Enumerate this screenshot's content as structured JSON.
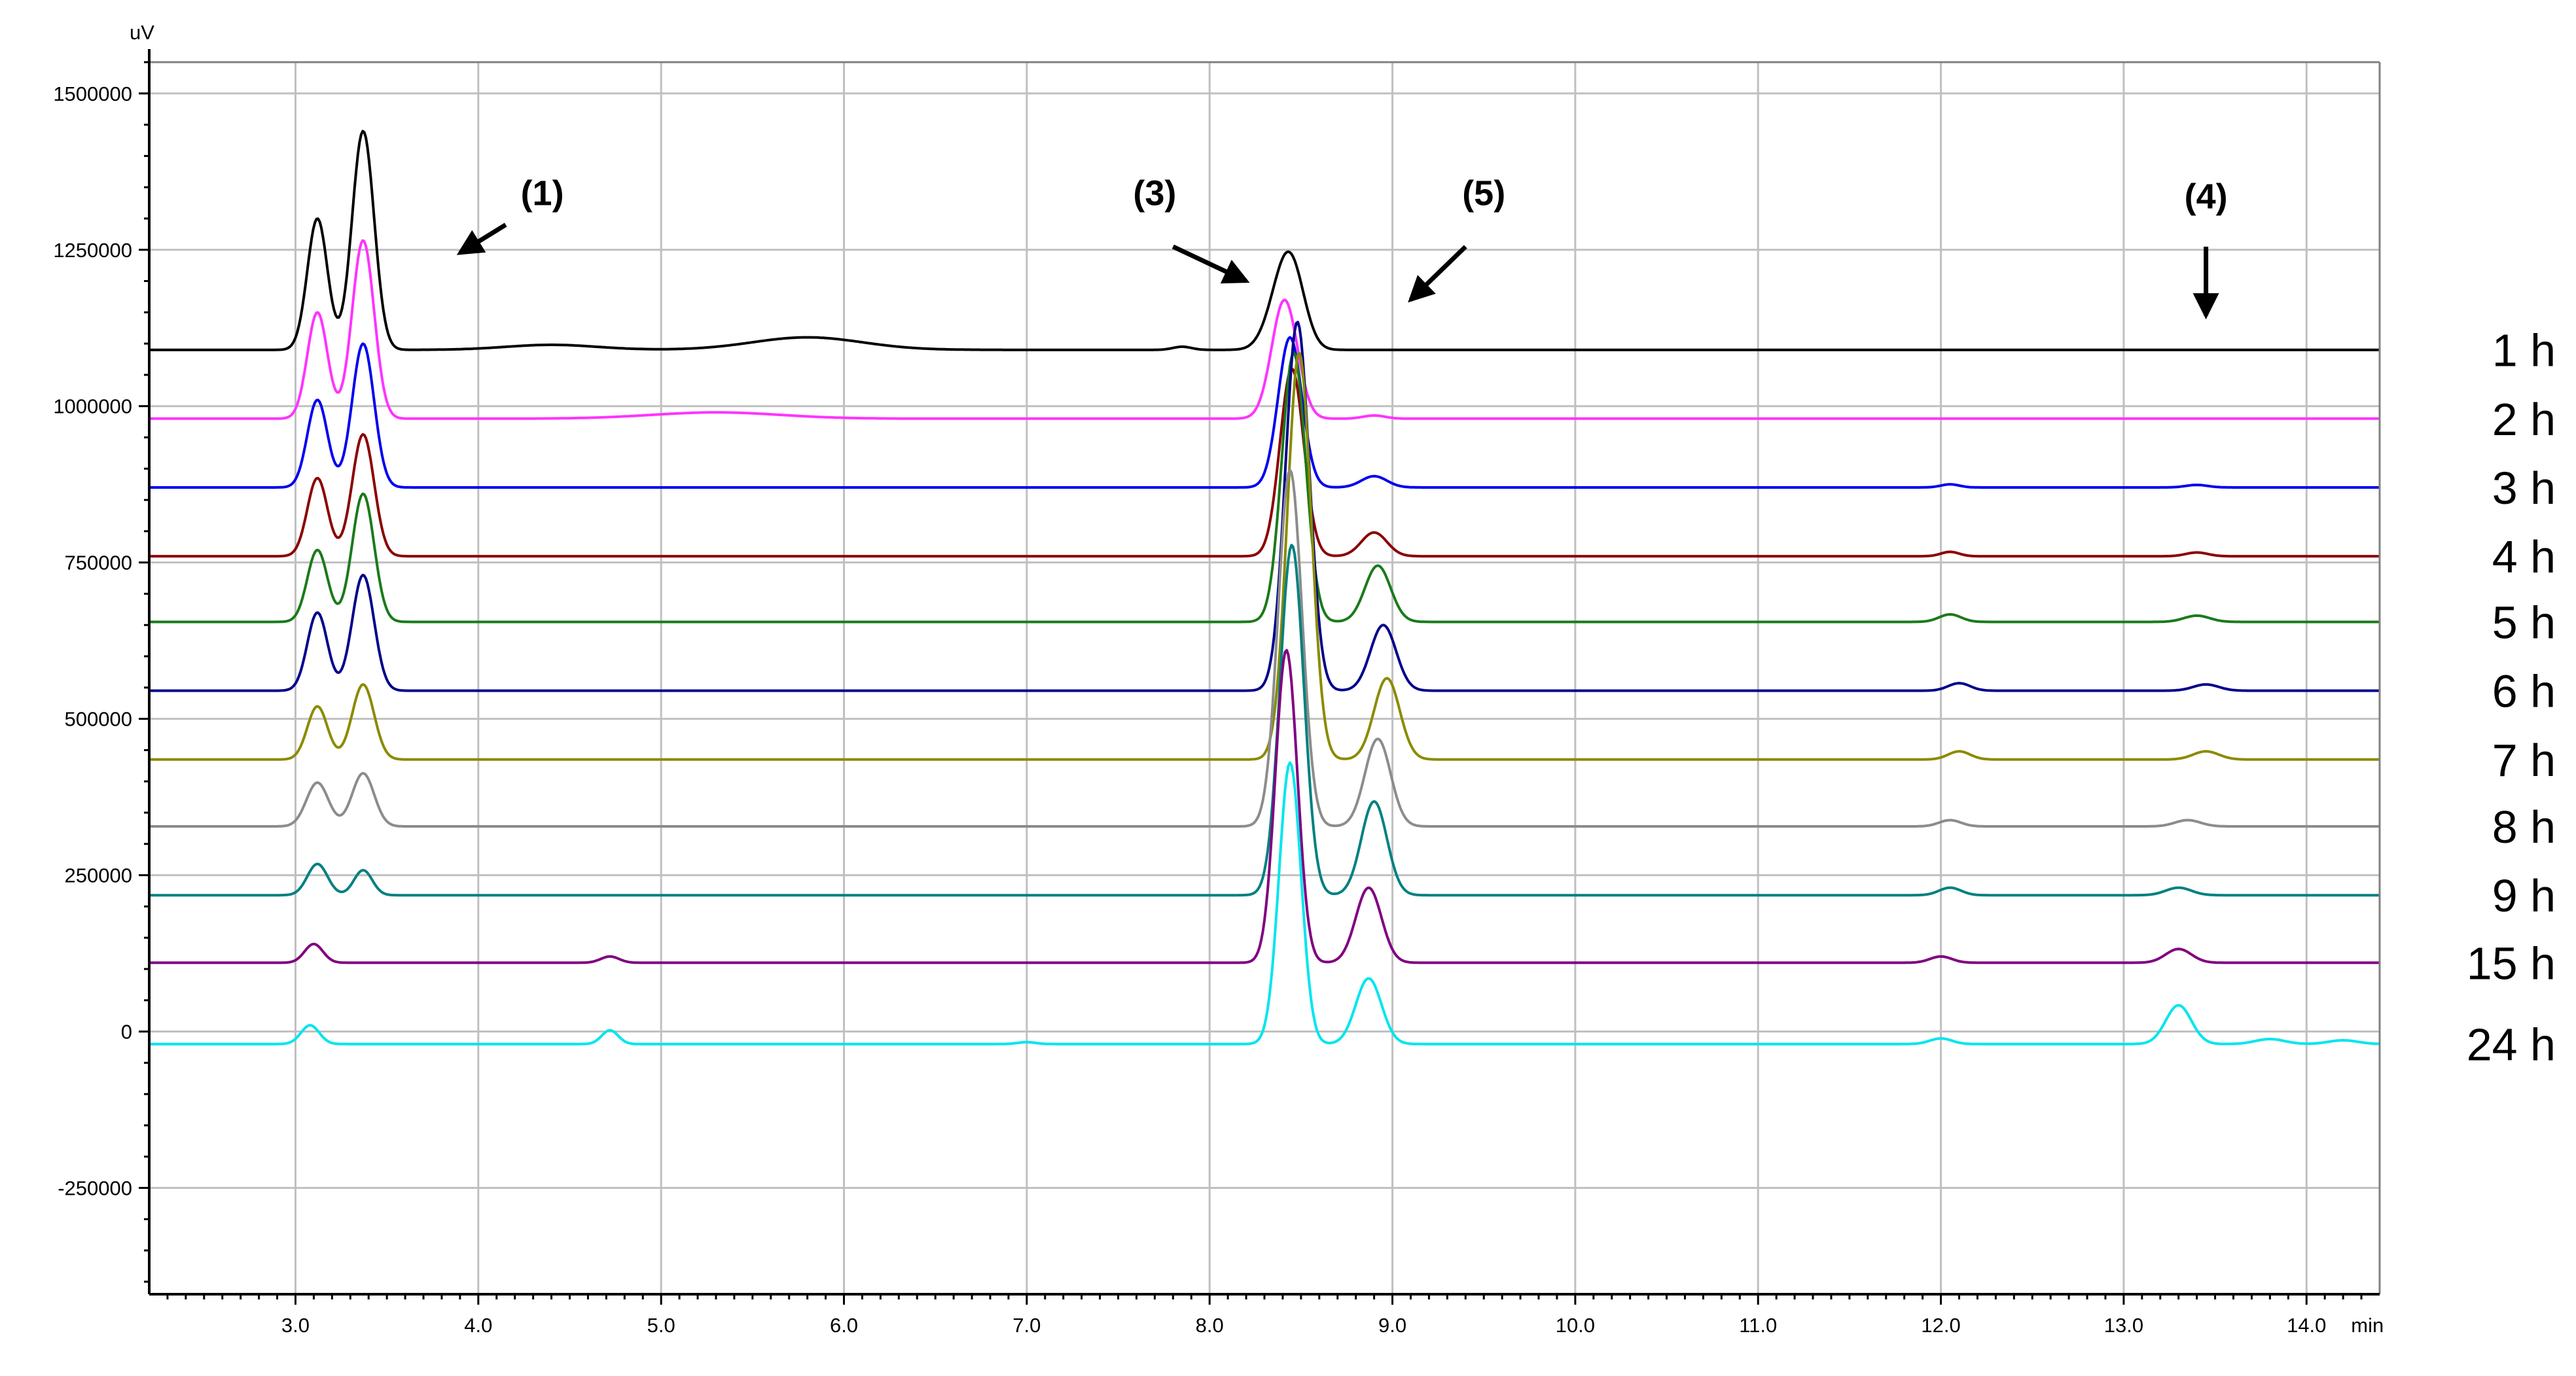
{
  "chart_data": {
    "type": "line",
    "title": "",
    "xlabel": "",
    "ylabel": "",
    "y_unit": "uV",
    "x_unit": "min",
    "xlim": [
      2.2,
      14.4
    ],
    "ylim": [
      -420000,
      1550000
    ],
    "x_ticks": [
      {
        "value": 3.0,
        "label": "3.0"
      },
      {
        "value": 4.0,
        "label": "4.0"
      },
      {
        "value": 5.0,
        "label": "5.0"
      },
      {
        "value": 6.0,
        "label": "6.0"
      },
      {
        "value": 7.0,
        "label": "7.0"
      },
      {
        "value": 8.0,
        "label": "8.0"
      },
      {
        "value": 9.0,
        "label": "9.0"
      },
      {
        "value": 10.0,
        "label": "10.0"
      },
      {
        "value": 11.0,
        "label": "11.0"
      },
      {
        "value": 12.0,
        "label": "12.0"
      },
      {
        "value": 13.0,
        "label": "13.0"
      },
      {
        "value": 14.0,
        "label": "14.0"
      }
    ],
    "y_ticks": [
      {
        "value": 1500000,
        "label": "1500000"
      },
      {
        "value": 1250000,
        "label": "1250000"
      },
      {
        "value": 1000000,
        "label": "1000000"
      },
      {
        "value": 750000,
        "label": "750000"
      },
      {
        "value": 500000,
        "label": "500000"
      },
      {
        "value": 250000,
        "label": "250000"
      },
      {
        "value": 0,
        "label": "0"
      },
      {
        "value": -250000,
        "label": "-250000"
      }
    ],
    "grid": true,
    "legend_position": "right",
    "annotations": [
      {
        "label": "(1)",
        "x": 4.35,
        "y": 1340000,
        "arrow_from": [
          4.15,
          1290000
        ],
        "arrow_to": [
          3.9,
          1245000
        ]
      },
      {
        "label": "(3)",
        "x": 7.7,
        "y": 1340000,
        "arrow_from": [
          7.8,
          1255000
        ],
        "arrow_to": [
          8.2,
          1200000
        ]
      },
      {
        "label": "(5)",
        "x": 9.5,
        "y": 1340000,
        "arrow_from": [
          9.4,
          1255000
        ],
        "arrow_to": [
          9.1,
          1170000
        ]
      },
      {
        "label": "(4)",
        "x": 13.45,
        "y": 1335000,
        "arrow_from": [
          13.45,
          1255000
        ],
        "arrow_to": [
          13.45,
          1145000
        ]
      }
    ],
    "series": [
      {
        "name": "1 h",
        "color": "#000000",
        "baseline": 1090000,
        "offset": 0,
        "peaks": [
          [
            3.12,
            210000,
            0.055
          ],
          [
            3.37,
            350000,
            0.06
          ],
          [
            4.4,
            8000,
            0.25
          ],
          [
            5.8,
            20000,
            0.3
          ],
          [
            7.85,
            5000,
            0.05
          ],
          [
            8.4,
            95000,
            0.08
          ],
          [
            8.46,
            75000,
            0.07
          ]
        ]
      },
      {
        "name": "2 h",
        "color": "#ff33ff",
        "baseline": 980000,
        "offset": 0,
        "peaks": [
          [
            3.12,
            170000,
            0.055
          ],
          [
            3.37,
            285000,
            0.06
          ],
          [
            5.3,
            10000,
            0.35
          ],
          [
            8.41,
            190000,
            0.07
          ],
          [
            8.9,
            5000,
            0.06
          ]
        ]
      },
      {
        "name": "3 h",
        "color": "#0000ee",
        "baseline": 870000,
        "offset": 0,
        "peaks": [
          [
            3.12,
            140000,
            0.055
          ],
          [
            3.37,
            230000,
            0.06
          ],
          [
            8.44,
            240000,
            0.065
          ],
          [
            8.9,
            18000,
            0.07
          ],
          [
            12.05,
            5000,
            0.05
          ],
          [
            13.4,
            4000,
            0.06
          ]
        ]
      },
      {
        "name": "4 h",
        "color": "#8b0000",
        "baseline": 760000,
        "offset": 0,
        "peaks": [
          [
            3.12,
            125000,
            0.055
          ],
          [
            3.37,
            195000,
            0.06
          ],
          [
            8.45,
            300000,
            0.065
          ],
          [
            8.9,
            38000,
            0.07
          ],
          [
            12.05,
            7000,
            0.05
          ],
          [
            13.4,
            6000,
            0.06
          ]
        ]
      },
      {
        "name": "5 h",
        "color": "#1a7a1a",
        "baseline": 655000,
        "offset": 0,
        "peaks": [
          [
            3.12,
            115000,
            0.055
          ],
          [
            3.37,
            205000,
            0.06
          ],
          [
            8.46,
            430000,
            0.065
          ],
          [
            8.92,
            90000,
            0.07
          ],
          [
            12.05,
            12000,
            0.06
          ],
          [
            13.4,
            10000,
            0.07
          ]
        ]
      },
      {
        "name": "6 h",
        "color": "#00008b",
        "baseline": 545000,
        "offset": 0,
        "peaks": [
          [
            3.12,
            125000,
            0.055
          ],
          [
            3.37,
            185000,
            0.06
          ],
          [
            8.48,
            590000,
            0.065
          ],
          [
            8.95,
            105000,
            0.07
          ],
          [
            12.1,
            12000,
            0.06
          ],
          [
            13.45,
            10000,
            0.07
          ]
        ]
      },
      {
        "name": "7 h",
        "color": "#8b8b00",
        "baseline": 435000,
        "offset": 0,
        "peaks": [
          [
            3.12,
            85000,
            0.055
          ],
          [
            3.37,
            120000,
            0.06
          ],
          [
            8.49,
            650000,
            0.065
          ],
          [
            8.97,
            130000,
            0.07
          ],
          [
            12.1,
            13000,
            0.06
          ],
          [
            13.45,
            13000,
            0.07
          ]
        ]
      },
      {
        "name": "8 h",
        "color": "#8c8c8c",
        "baseline": 328000,
        "offset": 0,
        "peaks": [
          [
            3.12,
            70000,
            0.06
          ],
          [
            3.37,
            85000,
            0.06
          ],
          [
            8.44,
            570000,
            0.065
          ],
          [
            8.92,
            140000,
            0.07
          ],
          [
            12.05,
            10000,
            0.06
          ],
          [
            13.35,
            10000,
            0.07
          ]
        ]
      },
      {
        "name": "9 h",
        "color": "#008080",
        "baseline": 218000,
        "offset": 0,
        "peaks": [
          [
            3.12,
            50000,
            0.055
          ],
          [
            3.37,
            40000,
            0.05
          ],
          [
            8.45,
            560000,
            0.065
          ],
          [
            8.9,
            150000,
            0.07
          ],
          [
            12.05,
            12000,
            0.06
          ],
          [
            13.3,
            12000,
            0.07
          ]
        ]
      },
      {
        "name": "15 h",
        "color": "#800080",
        "baseline": 110000,
        "offset": 0,
        "peaks": [
          [
            3.1,
            30000,
            0.05
          ],
          [
            4.72,
            10000,
            0.05
          ],
          [
            8.42,
            500000,
            0.06
          ],
          [
            8.87,
            120000,
            0.07
          ],
          [
            12.0,
            10000,
            0.06
          ],
          [
            13.3,
            22000,
            0.07
          ]
        ]
      },
      {
        "name": "24 h",
        "color": "#00e5ee",
        "baseline": -20000,
        "offset": 0,
        "peaks": [
          [
            3.08,
            30000,
            0.05
          ],
          [
            4.72,
            22000,
            0.045
          ],
          [
            7.0,
            3000,
            0.05
          ],
          [
            8.44,
            450000,
            0.06
          ],
          [
            8.87,
            105000,
            0.07
          ],
          [
            12.0,
            9000,
            0.06
          ],
          [
            13.3,
            62000,
            0.07
          ],
          [
            13.8,
            8000,
            0.08
          ],
          [
            14.2,
            6000,
            0.08
          ]
        ]
      }
    ]
  }
}
